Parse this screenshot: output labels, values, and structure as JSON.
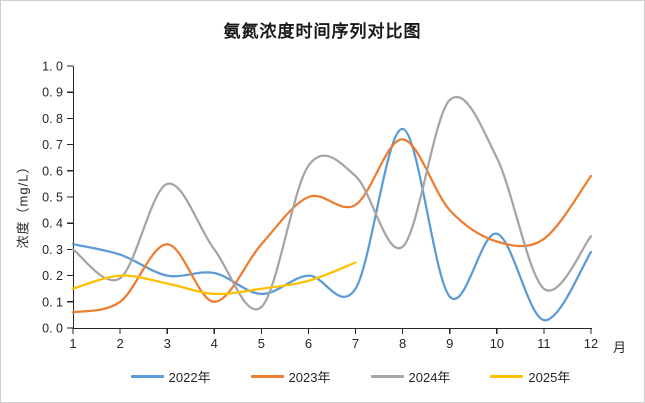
{
  "frame": {
    "background": "#FFFFFF",
    "border_color": "#CFCFCF"
  },
  "chart_data": {
    "type": "line",
    "title": "氨氮浓度时间序列对比图",
    "ylabel": "浓度（mg/L）",
    "xlabel": "",
    "x_unit": "月",
    "categories": [
      "1",
      "2",
      "3",
      "4",
      "5",
      "6",
      "7",
      "8",
      "9",
      "10",
      "11",
      "12"
    ],
    "ylim": [
      0.0,
      1.0
    ],
    "y_tick_step": 0.1,
    "y_tick_labels": [
      "0. 0",
      "0. 1",
      "0. 2",
      "0. 3",
      "0. 4",
      "0. 5",
      "0. 6",
      "0. 7",
      "0. 8",
      "0. 9",
      "1. 0"
    ],
    "grid": false,
    "smooth": true,
    "line_width": 2.25,
    "legend_position": "bottom",
    "axis_color": "#262626",
    "text_color": "#262626",
    "series": [
      {
        "name": "2022年",
        "color": "#5B9BD5",
        "values": [
          0.32,
          0.28,
          0.2,
          0.21,
          0.13,
          0.2,
          0.15,
          0.76,
          0.12,
          0.36,
          0.03,
          0.29
        ]
      },
      {
        "name": "2023年",
        "color": "#ED7D31",
        "values": [
          0.06,
          0.1,
          0.32,
          0.1,
          0.32,
          0.5,
          0.47,
          0.72,
          0.45,
          0.33,
          0.34,
          0.58
        ]
      },
      {
        "name": "2024年",
        "color": "#A5A5A5",
        "values": [
          0.3,
          0.19,
          0.55,
          0.3,
          0.08,
          0.62,
          0.58,
          0.31,
          0.87,
          0.65,
          0.15,
          0.35
        ]
      },
      {
        "name": "2025年",
        "color": "#FFC000",
        "values": [
          0.15,
          0.2,
          0.17,
          0.13,
          0.15,
          0.18,
          0.25
        ]
      }
    ]
  }
}
